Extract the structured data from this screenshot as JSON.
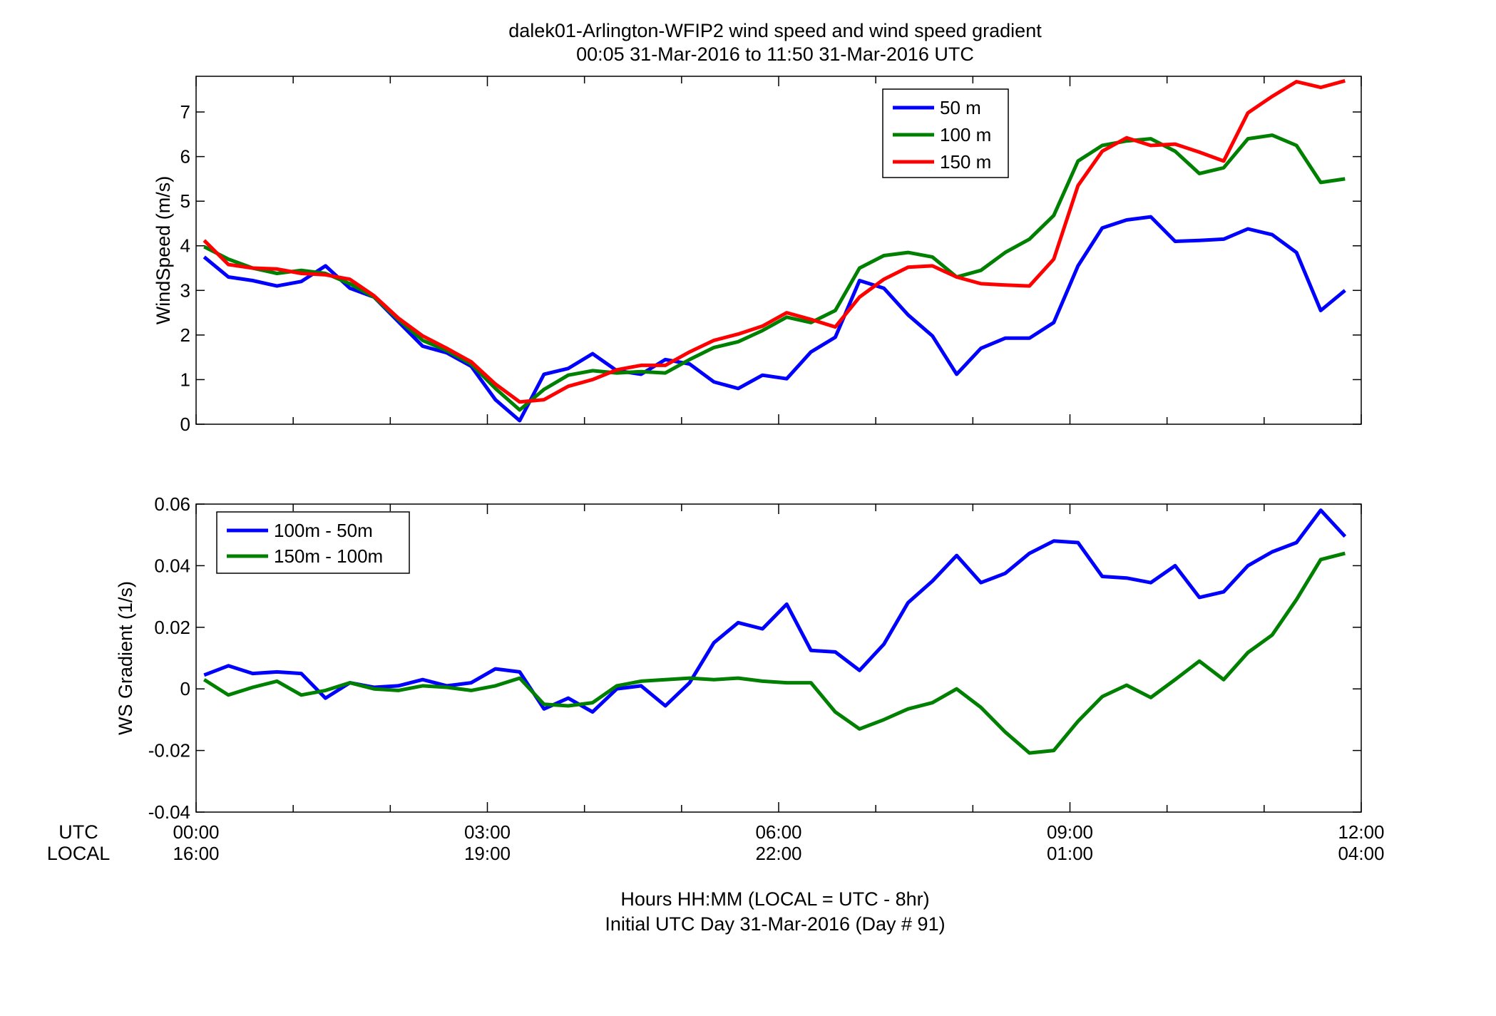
{
  "figure": {
    "title_line1": "dalek01-Arlington-WFIP2  wind speed and wind speed gradient",
    "title_line2": "00:05 31-Mar-2016 to 11:50 31-Mar-2016  UTC",
    "xlabel_line1": "Hours HH:MM  (LOCAL = UTC - 8hr)",
    "xlabel_line2": "Initial UTC Day 31-Mar-2016 (Day # 91)",
    "row_label_utc": "UTC",
    "row_label_local": "LOCAL"
  },
  "chart_data": [
    {
      "type": "line",
      "title": "",
      "ylabel": "WindSpeed (m/s)",
      "xlabel": "",
      "xlim": [
        0,
        12
      ],
      "ylim": [
        0,
        7.8
      ],
      "yticks": [
        0,
        1,
        2,
        3,
        4,
        5,
        6,
        7
      ],
      "ytick_labels": [
        "0",
        "1",
        "2",
        "3",
        "4",
        "5",
        "6",
        "7"
      ],
      "grid": false,
      "legend_position": "top-right",
      "x": [
        0.083,
        0.333,
        0.583,
        0.833,
        1.083,
        1.333,
        1.583,
        1.833,
        2.083,
        2.333,
        2.583,
        2.833,
        3.083,
        3.333,
        3.583,
        3.833,
        4.083,
        4.333,
        4.583,
        4.833,
        5.083,
        5.333,
        5.583,
        5.833,
        6.083,
        6.333,
        6.583,
        6.833,
        7.083,
        7.333,
        7.583,
        7.833,
        8.083,
        8.333,
        8.583,
        8.833,
        9.083,
        9.333,
        9.583,
        9.833,
        10.083,
        10.333,
        10.583,
        10.833,
        11.083,
        11.333,
        11.583,
        11.833
      ],
      "series": [
        {
          "name": "50 m",
          "color": "#0000ff",
          "values": [
            3.75,
            3.3,
            3.22,
            3.1,
            3.2,
            3.55,
            3.05,
            2.85,
            2.3,
            1.75,
            1.6,
            1.3,
            0.55,
            0.08,
            1.12,
            1.25,
            1.58,
            1.2,
            1.12,
            1.45,
            1.35,
            0.95,
            0.8,
            1.1,
            1.02,
            1.62,
            1.95,
            3.22,
            3.05,
            2.45,
            1.98,
            1.12,
            1.7,
            1.93,
            1.93,
            2.28,
            3.55,
            4.4,
            4.58,
            4.65,
            4.1,
            4.12,
            4.15,
            4.38,
            4.25,
            3.85,
            2.55,
            3.0
          ]
        },
        {
          "name": "100 m",
          "color": "#008000",
          "values": [
            3.98,
            3.7,
            3.5,
            3.38,
            3.45,
            3.38,
            3.15,
            2.85,
            2.35,
            1.88,
            1.65,
            1.35,
            0.8,
            0.32,
            0.78,
            1.1,
            1.2,
            1.15,
            1.18,
            1.15,
            1.45,
            1.72,
            1.85,
            2.1,
            2.4,
            2.28,
            2.55,
            3.5,
            3.78,
            3.85,
            3.75,
            3.3,
            3.45,
            3.85,
            4.15,
            4.68,
            5.9,
            6.25,
            6.35,
            6.4,
            6.12,
            5.62,
            5.75,
            6.4,
            6.48,
            6.25,
            5.42,
            5.5
          ]
        },
        {
          "name": "150 m",
          "color": "#ff0000",
          "values": [
            4.12,
            3.58,
            3.5,
            3.48,
            3.38,
            3.35,
            3.25,
            2.88,
            2.38,
            1.98,
            1.7,
            1.4,
            0.9,
            0.5,
            0.55,
            0.85,
            1.0,
            1.22,
            1.32,
            1.32,
            1.62,
            1.88,
            2.02,
            2.2,
            2.5,
            2.35,
            2.18,
            2.85,
            3.25,
            3.52,
            3.55,
            3.3,
            3.15,
            3.12,
            3.1,
            3.7,
            5.35,
            6.12,
            6.42,
            6.25,
            6.28,
            6.1,
            5.9,
            6.98,
            7.35,
            7.68,
            7.55,
            7.7
          ]
        }
      ]
    },
    {
      "type": "line",
      "title": "",
      "ylabel": "WS Gradient (1/s)",
      "xlabel": "",
      "xlim": [
        0,
        12
      ],
      "ylim": [
        -0.04,
        0.06
      ],
      "yticks": [
        -0.04,
        -0.02,
        0,
        0.02,
        0.04,
        0.06
      ],
      "ytick_labels": [
        "-0.04",
        "-0.02",
        "0",
        "0.02",
        "0.04",
        "0.06"
      ],
      "xtick_labels_utc": [
        "00:00",
        "03:00",
        "06:00",
        "09:00",
        "12:00"
      ],
      "xtick_labels_local": [
        "16:00",
        "19:00",
        "22:00",
        "01:00",
        "04:00"
      ],
      "grid": false,
      "legend_position": "top-left",
      "x": [
        0.083,
        0.333,
        0.583,
        0.833,
        1.083,
        1.333,
        1.583,
        1.833,
        2.083,
        2.333,
        2.583,
        2.833,
        3.083,
        3.333,
        3.583,
        3.833,
        4.083,
        4.333,
        4.583,
        4.833,
        5.083,
        5.333,
        5.583,
        5.833,
        6.083,
        6.333,
        6.583,
        6.833,
        7.083,
        7.333,
        7.583,
        7.833,
        8.083,
        8.333,
        8.583,
        8.833,
        9.083,
        9.333,
        9.583,
        9.833,
        10.083,
        10.333,
        10.583,
        10.833,
        11.083,
        11.333,
        11.583,
        11.833
      ],
      "series": [
        {
          "name": "100m - 50m",
          "color": "#0000ff",
          "values": [
            0.0045,
            0.0075,
            0.005,
            0.0055,
            0.005,
            -0.003,
            0.002,
            0.0005,
            0.001,
            0.003,
            0.001,
            0.002,
            0.0065,
            0.0055,
            -0.0065,
            -0.003,
            -0.0075,
            0.0,
            0.001,
            -0.0055,
            0.002,
            0.015,
            0.0215,
            0.0195,
            0.0275,
            0.0125,
            0.012,
            0.006,
            0.0145,
            0.028,
            0.035,
            0.0433,
            0.0345,
            0.0375,
            0.044,
            0.048,
            0.0475,
            0.0365,
            0.036,
            0.0345,
            0.04,
            0.0297,
            0.0315,
            0.04,
            0.0445,
            0.0475,
            0.058,
            0.0495
          ]
        },
        {
          "name": "150m - 100m",
          "color": "#008000",
          "values": [
            0.003,
            -0.002,
            0.0005,
            0.0025,
            -0.002,
            -0.0005,
            0.002,
            0.0,
            -0.0005,
            0.001,
            0.0005,
            -0.0005,
            0.001,
            0.0035,
            -0.005,
            -0.0055,
            -0.0045,
            0.001,
            0.0025,
            0.003,
            0.0035,
            0.003,
            0.0035,
            0.0025,
            0.002,
            0.002,
            -0.0075,
            -0.013,
            -0.01,
            -0.0065,
            -0.0045,
            0.0,
            -0.006,
            -0.014,
            -0.0208,
            -0.02,
            -0.0105,
            -0.0025,
            0.0012,
            -0.0028,
            0.003,
            0.009,
            0.003,
            0.0118,
            0.0175,
            0.029,
            0.042,
            0.044
          ]
        }
      ]
    }
  ]
}
